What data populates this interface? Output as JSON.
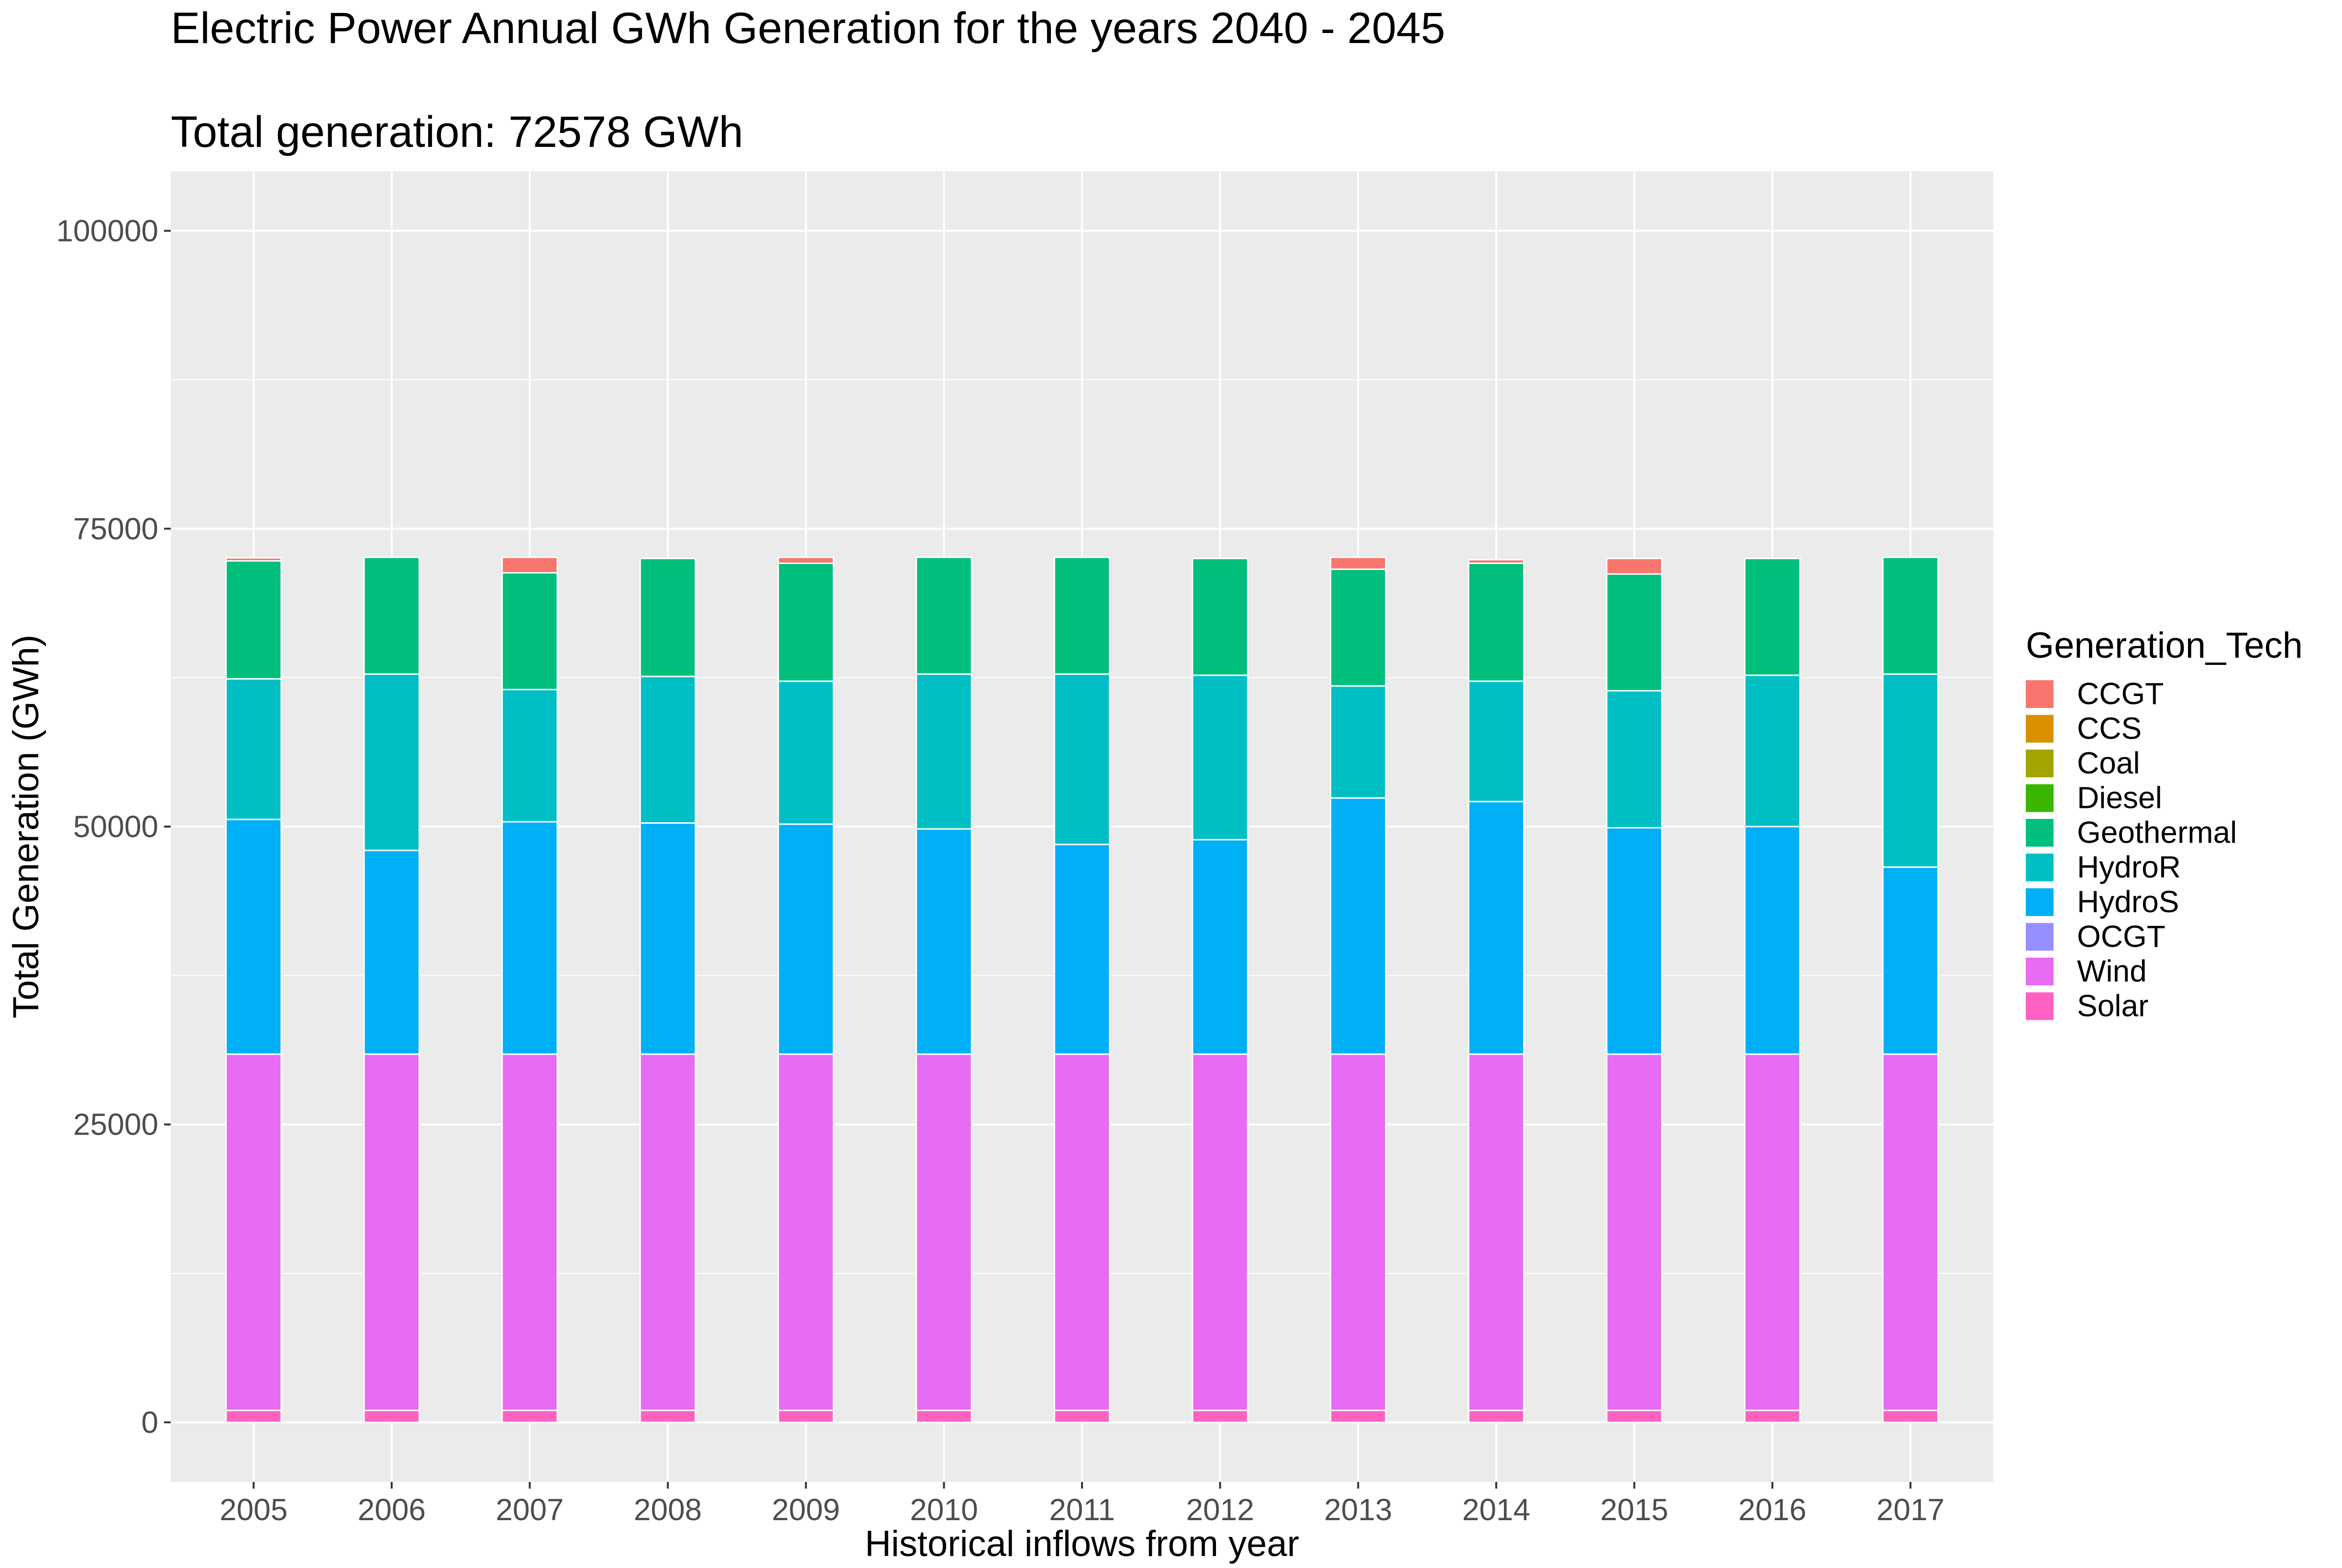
{
  "chart_data": {
    "type": "bar",
    "stacked": true,
    "title": "Electric Power Annual GWh Generation for the years 2040 - 2045",
    "subtitle": "Total generation: 72578 GWh",
    "xlabel": "Historical inflows from year",
    "ylabel": "Total Generation (GWh)",
    "ylim": [
      -5000,
      105000
    ],
    "yticks": [
      0,
      25000,
      50000,
      75000,
      100000
    ],
    "grid": true,
    "legend_title": "Generation_Tech",
    "legend_position": "right",
    "categories": [
      "2005",
      "2006",
      "2007",
      "2008",
      "2009",
      "2010",
      "2011",
      "2012",
      "2013",
      "2014",
      "2015",
      "2016",
      "2017"
    ],
    "series": [
      {
        "name": "Solar",
        "color": "#FF61C3",
        "values": [
          1000,
          1000,
          1000,
          1000,
          1000,
          1000,
          1000,
          1000,
          1000,
          1000,
          1000,
          1000,
          1000
        ]
      },
      {
        "name": "Wind",
        "color": "#E76BF3",
        "values": [
          29900,
          29900,
          29900,
          29900,
          29900,
          29900,
          29900,
          29900,
          29900,
          29900,
          29900,
          29900,
          29900
        ]
      },
      {
        "name": "OCGT",
        "color": "#9590FF",
        "values": [
          0,
          0,
          0,
          0,
          0,
          0,
          0,
          0,
          0,
          0,
          0,
          0,
          0
        ]
      },
      {
        "name": "HydroS",
        "color": "#00B0F6",
        "values": [
          19700,
          17100,
          19500,
          19400,
          19300,
          18900,
          17600,
          18000,
          21500,
          21200,
          19000,
          19100,
          15700
        ]
      },
      {
        "name": "HydroR",
        "color": "#00BFC4",
        "values": [
          11800,
          14800,
          11100,
          12300,
          12000,
          13000,
          14300,
          13800,
          9400,
          10100,
          11500,
          12700,
          16200
        ]
      },
      {
        "name": "Geothermal",
        "color": "#00BF7D",
        "values": [
          9900,
          9800,
          9800,
          9900,
          9900,
          9800,
          9800,
          9800,
          9800,
          9900,
          9800,
          9800,
          9800
        ]
      },
      {
        "name": "Diesel",
        "color": "#39B600",
        "values": [
          0,
          0,
          0,
          0,
          0,
          0,
          0,
          0,
          0,
          0,
          0,
          0,
          0
        ]
      },
      {
        "name": "Coal",
        "color": "#A3A500",
        "values": [
          0,
          0,
          0,
          0,
          0,
          0,
          0,
          0,
          0,
          0,
          0,
          0,
          0
        ]
      },
      {
        "name": "CCS",
        "color": "#D89000",
        "values": [
          0,
          0,
          0,
          0,
          0,
          0,
          0,
          0,
          0,
          0,
          0,
          0,
          0
        ]
      },
      {
        "name": "CCGT",
        "color": "#F8766D",
        "values": [
          250,
          0,
          1300,
          0,
          500,
          0,
          0,
          0,
          1000,
          300,
          1300,
          0,
          0
        ]
      }
    ],
    "legend_order": [
      "CCGT",
      "CCS",
      "Coal",
      "Diesel",
      "Geothermal",
      "HydroR",
      "HydroS",
      "OCGT",
      "Wind",
      "Solar"
    ]
  }
}
